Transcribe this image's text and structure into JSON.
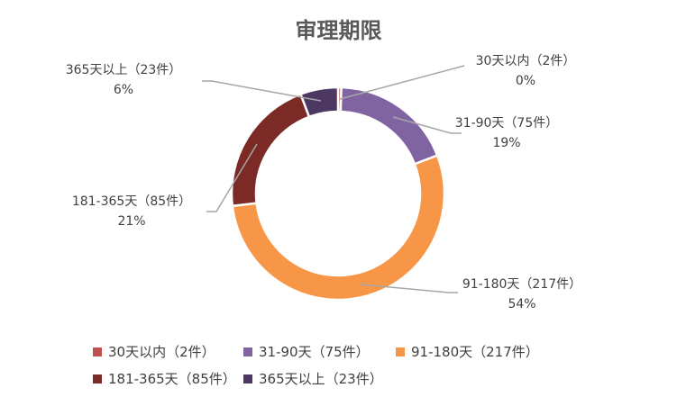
{
  "chart_data": {
    "type": "pie",
    "donut": true,
    "title": "审理期限",
    "categories": [
      "30天以内（2件）",
      "31-90天（75件）",
      "91-180天（217件）",
      "181-365天（85件）",
      "365天以上（23件）"
    ],
    "values": [
      2,
      75,
      217,
      85,
      23
    ],
    "percent_labels": [
      "0%",
      "19%",
      "54%",
      "21%",
      "6%"
    ],
    "colors": [
      "#c0504d",
      "#8064a2",
      "#f79646",
      "#7b2a26",
      "#4d3862"
    ],
    "legend_position": "bottom"
  }
}
